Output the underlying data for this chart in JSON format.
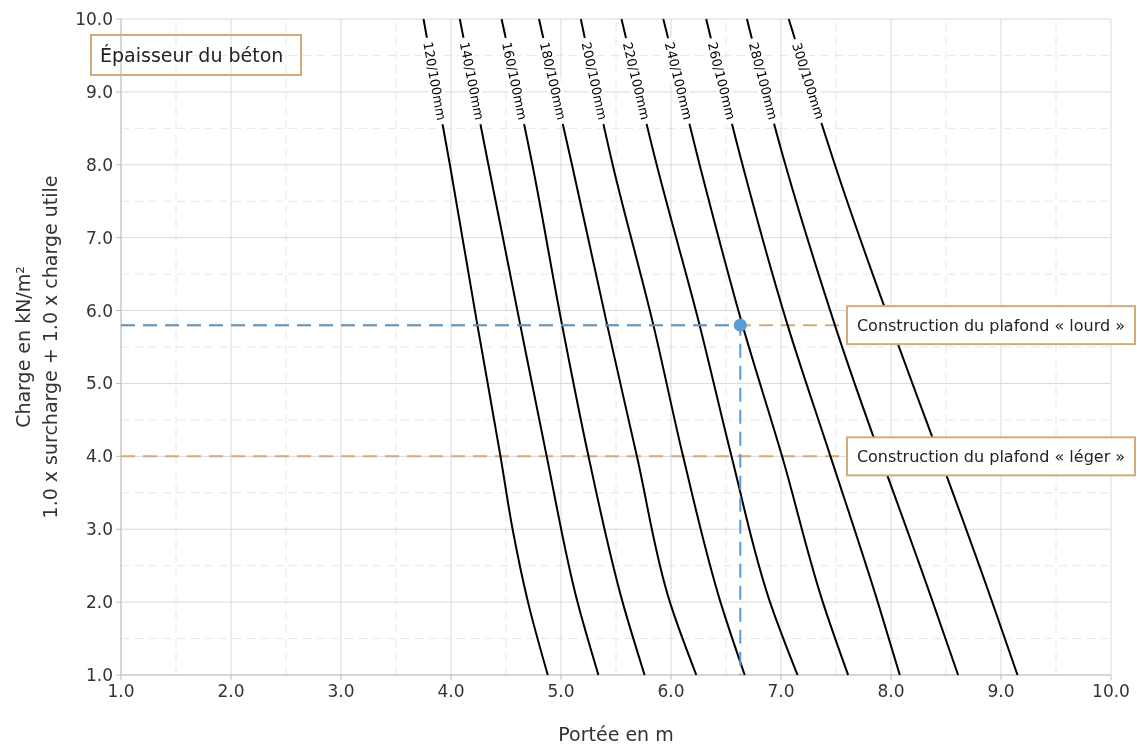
{
  "chart_data": {
    "type": "line",
    "title": "Épaisseur du béton",
    "xlabel": "Portée en m",
    "ylabel": "Charge en kN/m²\n1.0 x surcharge + 1.0 x charge utile",
    "xlim": [
      1,
      10
    ],
    "ylim": [
      1,
      10
    ],
    "xticks": [
      {
        "value": 1,
        "label": "1.0"
      },
      {
        "value": 2,
        "label": "2.0"
      },
      {
        "value": 3,
        "label": "3.0"
      },
      {
        "value": 4,
        "label": "4.0"
      },
      {
        "value": 5,
        "label": "5.0"
      },
      {
        "value": 6,
        "label": "6.0"
      },
      {
        "value": 7,
        "label": "7.0"
      },
      {
        "value": 8,
        "label": "8.0"
      },
      {
        "value": 9,
        "label": "9.0"
      },
      {
        "value": 10,
        "label": "10.0"
      }
    ],
    "yticks": [
      {
        "value": 1,
        "label": "1.0"
      },
      {
        "value": 2,
        "label": "2.0"
      },
      {
        "value": 3,
        "label": "3.0"
      },
      {
        "value": 4,
        "label": "4.0"
      },
      {
        "value": 5,
        "label": "5.0"
      },
      {
        "value": 6,
        "label": "6.0"
      },
      {
        "value": 7,
        "label": "7.0"
      },
      {
        "value": 8,
        "label": "8.0"
      },
      {
        "value": 9,
        "label": "9.0"
      },
      {
        "value": 10,
        "label": "10.0"
      }
    ],
    "grid": true,
    "line_style": "solid",
    "series": [
      {
        "name": "120/100mm",
        "color": "#000000",
        "x": [
          3.75,
          3.99,
          4.24,
          4.45,
          4.56,
          4.7,
          4.88
        ],
        "values": [
          10,
          8,
          5.8,
          4,
          3,
          2,
          1
        ]
      },
      {
        "name": "140/100mm",
        "color": "#000000",
        "x": [
          4.08,
          4.34,
          4.63,
          4.87,
          5.15,
          5.34
        ],
        "values": [
          10,
          8,
          5.8,
          4,
          2,
          1
        ]
      },
      {
        "name": "160/100mm",
        "color": "#000000",
        "x": [
          4.46,
          4.74,
          5.01,
          5.25,
          5.56,
          5.76
        ],
        "values": [
          10,
          8,
          5.8,
          4,
          2,
          1
        ]
      },
      {
        "name": "180/100mm",
        "color": "#000000",
        "x": [
          4.8,
          5.1,
          5.42,
          5.69,
          5.99,
          6.23
        ],
        "values": [
          10,
          8,
          5.8,
          4,
          2,
          1
        ]
      },
      {
        "name": "200/100mm",
        "color": "#000000",
        "x": [
          5.18,
          5.47,
          5.84,
          6.11,
          6.45,
          6.67
        ],
        "values": [
          10,
          8,
          5.8,
          4,
          2,
          1
        ]
      },
      {
        "name": "220/100mm",
        "color": "#000000",
        "x": [
          5.55,
          5.87,
          6.26,
          6.55,
          6.9,
          7.15
        ],
        "values": [
          10,
          8,
          5.8,
          4,
          2,
          1
        ]
      },
      {
        "name": "240/100mm",
        "color": "#000000",
        "x": [
          5.93,
          6.26,
          6.65,
          7.01,
          7.38,
          7.61
        ],
        "values": [
          10,
          8,
          5.8,
          4,
          2,
          1
        ]
      },
      {
        "name": "260/100mm",
        "color": "#000000",
        "x": [
          6.32,
          6.65,
          7.06,
          7.45,
          7.88,
          8.08
        ],
        "values": [
          10,
          8,
          5.8,
          4,
          2,
          1
        ]
      },
      {
        "name": "280/100mm",
        "color": "#000000",
        "x": [
          6.69,
          7.04,
          7.49,
          7.89,
          8.38,
          8.61
        ],
        "values": [
          10,
          8,
          5.8,
          null,
          2,
          1
        ]
      },
      {
        "name": "300/100mm",
        "color": "#000000",
        "x": [
          7.07,
          7.49,
          7.99,
          8.35,
          8.92,
          9.15
        ],
        "values": [
          10,
          8,
          null,
          null,
          2,
          1
        ]
      },
      {
        "type": "line",
        "color": "#5b9bd5",
        "line_style": "dashed",
        "x": [
          1,
          6.63,
          6.63
        ],
        "values": [
          5.8,
          5.8,
          1
        ]
      },
      {
        "type": "scatter",
        "color": "#5b9bd5",
        "marker": "circle",
        "x": [
          6.63
        ],
        "values": [
          5.8
        ]
      }
    ],
    "ref_lines": [
      {
        "axis": "y",
        "value": 5.8,
        "label": "Construction du plafond « lourd »",
        "color": "#d4aa7d",
        "line_style": "dashed"
      },
      {
        "axis": "y",
        "value": 4,
        "label": "Construction du plafond « léger »",
        "color": "#d4aa7d",
        "line_style": "dashed"
      }
    ]
  }
}
